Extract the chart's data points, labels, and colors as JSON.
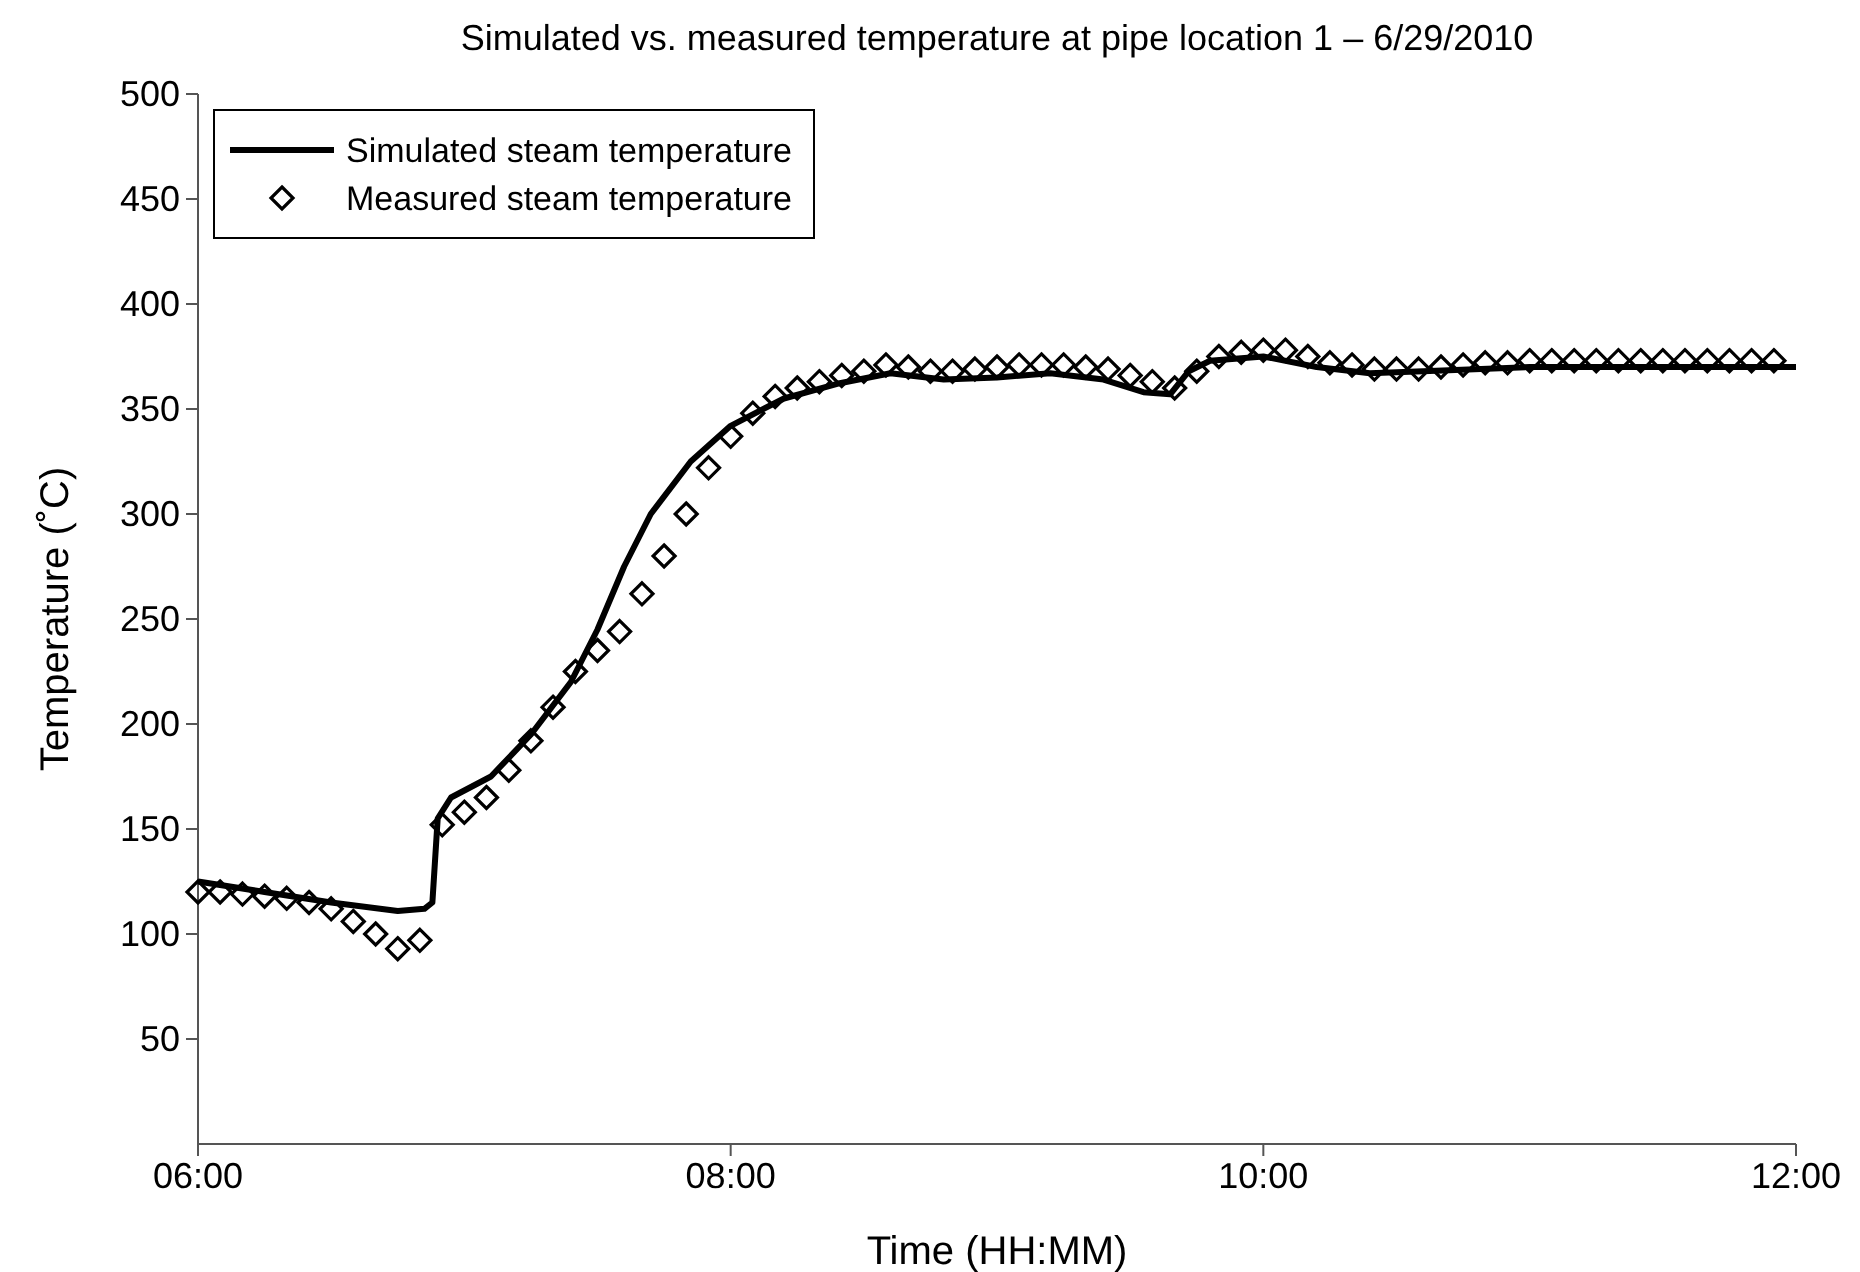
{
  "chart_data": {
    "type": "line",
    "title": "Simulated vs. measured temperature at pipe location 1 – 6/29/2010",
    "xlabel": "Time (HH:MM)",
    "ylabel": "Temperature (˚C)",
    "xlim": [
      6,
      12
    ],
    "xticks": [
      {
        "value": 6,
        "label": "06:00"
      },
      {
        "value": 8,
        "label": "08:00"
      },
      {
        "value": 10,
        "label": "10:00"
      },
      {
        "value": 12,
        "label": "12:00"
      }
    ],
    "ylim": [
      0,
      500
    ],
    "yticks": [
      50,
      100,
      150,
      200,
      250,
      300,
      350,
      400,
      450,
      500
    ],
    "grid": false,
    "legend": "top left",
    "series": [
      {
        "name": "Simulated steam temperature",
        "color": "#000000",
        "marker": "none",
        "line_style": "solid",
        "x": [
          6,
          6.25,
          6.5,
          6.75,
          6.85,
          6.88,
          6.9,
          6.95,
          7.1,
          7.25,
          7.4,
          7.5,
          7.6,
          7.7,
          7.85,
          8,
          8.2,
          8.4,
          8.6,
          8.8,
          9,
          9.2,
          9.4,
          9.55,
          9.65,
          9.72,
          9.8,
          10,
          10.2,
          10.4,
          10.6,
          11,
          11.5,
          12
        ],
        "values": [
          125,
          120,
          115,
          111,
          112,
          115,
          155,
          165,
          175,
          195,
          220,
          245,
          275,
          300,
          325,
          342,
          355,
          362,
          367,
          364,
          365,
          367,
          364,
          358,
          357,
          368,
          373,
          375,
          370,
          367,
          368,
          370,
          370,
          370
        ]
      },
      {
        "name": "Measured steam temperature",
        "type": "scatter",
        "color": "#000000",
        "marker": "diamond",
        "x": [
          6,
          6.083,
          6.167,
          6.25,
          6.333,
          6.417,
          6.5,
          6.583,
          6.667,
          6.75,
          6.833,
          6.917,
          7,
          7.083,
          7.167,
          7.25,
          7.333,
          7.417,
          7.5,
          7.583,
          7.667,
          7.75,
          7.833,
          7.917,
          8,
          8.083,
          8.167,
          8.25,
          8.333,
          8.417,
          8.5,
          8.583,
          8.667,
          8.75,
          8.833,
          8.917,
          9,
          9.083,
          9.167,
          9.25,
          9.333,
          9.417,
          9.5,
          9.583,
          9.667,
          9.75,
          9.833,
          9.917,
          10,
          10.083,
          10.167,
          10.25,
          10.333,
          10.417,
          10.5,
          10.583,
          10.667,
          10.75,
          10.833,
          10.917,
          11,
          11.083,
          11.167,
          11.25,
          11.333,
          11.417,
          11.5,
          11.583,
          11.667,
          11.75,
          11.833,
          11.917
        ],
        "values": [
          120,
          120,
          119,
          118,
          117,
          115,
          112,
          106,
          100,
          93,
          97,
          152,
          158,
          165,
          178,
          192,
          208,
          225,
          235,
          244,
          262,
          280,
          300,
          322,
          337,
          348,
          356,
          360,
          363,
          366,
          368,
          371,
          370,
          368,
          368,
          369,
          370,
          371,
          371,
          371,
          370,
          369,
          366,
          363,
          360,
          368,
          375,
          377,
          378,
          378,
          375,
          372,
          371,
          369,
          369,
          369,
          370,
          371,
          372,
          372,
          373,
          373,
          373,
          373,
          373,
          373,
          373,
          373,
          373,
          373,
          373,
          373
        ]
      }
    ]
  }
}
